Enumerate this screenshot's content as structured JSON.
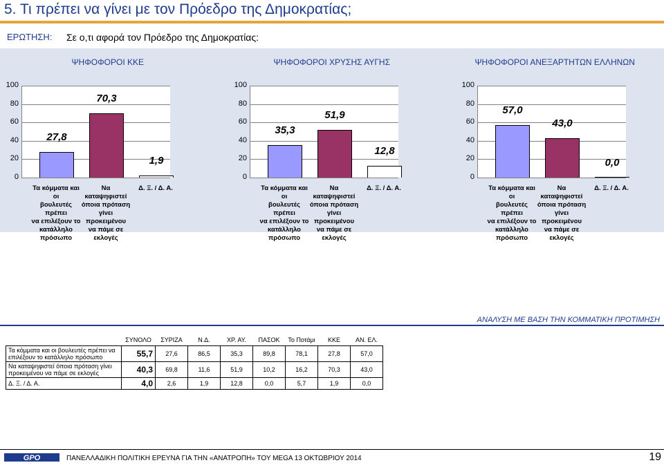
{
  "page": {
    "title": "5.   Τι πρέπει να γίνει με τον Πρόεδρο της Δημοκρατίας;",
    "question_label": "ΕΡΩΤΗΣΗ:",
    "question_text": "Σε ο,τι αφορά τον Πρόεδρο της Δημοκρατίας:",
    "analysis_title": "ΑΝΑΛΥΣΗ ΜΕ ΒΑΣΗ ΤΗΝ ΚΟΜΜΑΤΙΚΗ ΠΡΟΤΙΜΗΣΗ",
    "footer_text": "ΠΑΝΕΛΛΑΔΙΚΗ ΠΟΛΙΤΙΚΗ ΕΡΕΥΝΑ ΓΙΑ ΤΗΝ «ΑΝΑΤΡΟΠΗ» ΤΟΥ MEGA  13  ΟΚΤΩΒΡΙΟΥ  2014",
    "page_number": "19",
    "logo_text": "GPO"
  },
  "colors": {
    "accent": "#1f3c8c",
    "title_bar": "#e8a33c",
    "band": "#dde3ef",
    "bar_blue": "#9999ff",
    "bar_maroon": "#993366",
    "bar_white": "#ffffff"
  },
  "chart_data": [
    {
      "type": "bar",
      "title": "ΨΗΦΟΦΟΡΟΙ ΚΚΕ",
      "categories": [
        "Τα κόμματα και οι βουλευτές πρέπει να επιλέξουν το κατάλληλο πρόσωπο",
        "Να καταψηφιστεί όποια πρόταση γίνει προκειμένου να πάμε σε εκλογές",
        "Δ. Ξ. / Δ. Α."
      ],
      "values": [
        27.8,
        70.3,
        1.9
      ],
      "labels": [
        "27,8",
        "70,3",
        "1,9"
      ],
      "bar_colors": [
        "#9999ff",
        "#993366",
        "#ffffff"
      ],
      "ylim": [
        0,
        100
      ],
      "yticks": [
        "0",
        "20",
        "40",
        "60",
        "80",
        "100"
      ],
      "grid": "horizontal"
    },
    {
      "type": "bar",
      "title": "ΨΗΦΟΦΟΡΟΙ ΧΡΥΣΗΣ ΑΥΓΗΣ",
      "categories": [
        "Τα κόμματα και οι βουλευτές πρέπει να επιλέξουν το κατάλληλο πρόσωπο",
        "Να καταψηφιστεί όποια πρόταση γίνει προκειμένου να πάμε σε εκλογές",
        "Δ. Ξ. / Δ. Α."
      ],
      "values": [
        35.3,
        51.9,
        12.8
      ],
      "labels": [
        "35,3",
        "51,9",
        "12,8"
      ],
      "bar_colors": [
        "#9999ff",
        "#993366",
        "#ffffff"
      ],
      "ylim": [
        0,
        100
      ],
      "yticks": [
        "0",
        "20",
        "40",
        "60",
        "80",
        "100"
      ],
      "grid": "horizontal"
    },
    {
      "type": "bar",
      "title": "ΨΗΦΟΦΟΡΟΙ ΑΝΕΞΑΡΤΗΤΩΝ ΕΛΛΗΝΩΝ",
      "categories": [
        "Τα κόμματα και οι βουλευτές πρέπει να επιλέξουν το κατάλληλο πρόσωπο",
        "Να καταψηφιστεί όποια πρόταση γίνει προκειμένου να πάμε σε εκλογές",
        "Δ. Ξ. / Δ. Α."
      ],
      "values": [
        57.0,
        43.0,
        0.0
      ],
      "labels": [
        "57,0",
        "43,0",
        "0,0"
      ],
      "bar_colors": [
        "#9999ff",
        "#993366",
        "#ffffff"
      ],
      "ylim": [
        0,
        100
      ],
      "yticks": [
        "0",
        "20",
        "40",
        "60",
        "80",
        "100"
      ],
      "grid": "horizontal"
    }
  ],
  "xlabel_lines": [
    [
      "Τα κόμματα και οι",
      "βουλευτές πρέπει",
      "να επιλέξουν το",
      "κατάλληλο",
      "πρόσωπο"
    ],
    [
      "Να καταψηφιστεί",
      "όποια πρόταση",
      "γίνει προκειμένου",
      "να πάμε σε εκλογές"
    ],
    [
      "Δ. Ξ. / Δ. Α."
    ]
  ],
  "table": {
    "type": "table",
    "headers": [
      "ΣΥΝΟΛΟ",
      "ΣΥΡΙΖΑ",
      "Ν.Δ.",
      "ΧΡ. ΑΥ.",
      "ΠΑΣΟΚ",
      "Το Ποτάμι",
      "ΚΚΕ",
      "ΑΝ. ΕΛ."
    ],
    "rows": [
      {
        "label_lines": [
          "Τα κόμματα και οι βουλευτές πρέπει να",
          "επιλέξουν το κατάλληλο πρόσωπο"
        ],
        "total": "55,7",
        "values": [
          "27,6",
          "86,5",
          "35,3",
          "89,8",
          "78,1",
          "27,8",
          "57,0"
        ]
      },
      {
        "label_lines": [
          "Να καταψηφιστεί όποια πρόταση γίνει",
          "προκειμένου να πάμε σε εκλογές"
        ],
        "total": "40,3",
        "values": [
          "69,8",
          "11,6",
          "51,9",
          "10,2",
          "16,2",
          "70,3",
          "43,0"
        ]
      },
      {
        "label_lines": [
          "Δ. Ξ. / Δ. Α."
        ],
        "total": "4,0",
        "values": [
          "2,6",
          "1,9",
          "12,8",
          "0,0",
          "5,7",
          "1,9",
          "0,0"
        ]
      }
    ]
  }
}
